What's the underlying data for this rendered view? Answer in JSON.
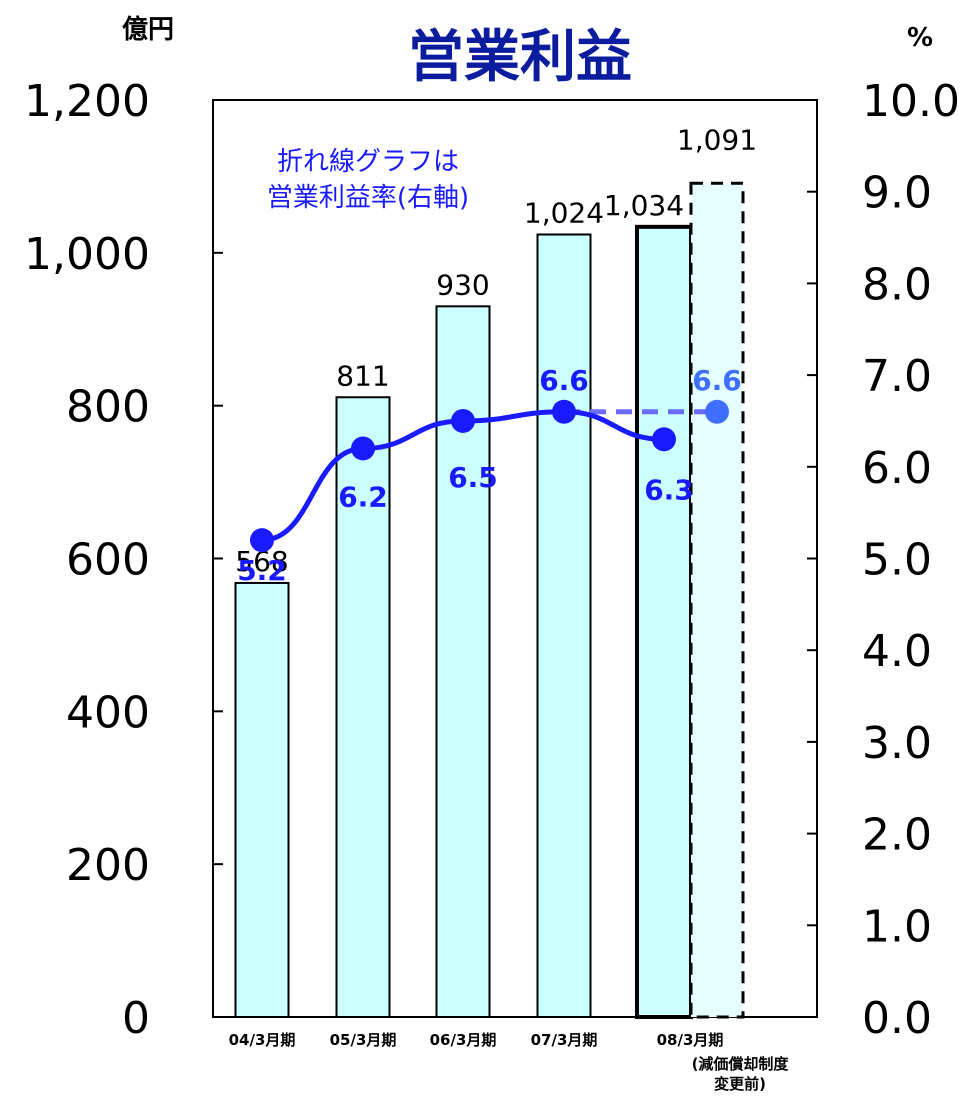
{
  "chart_data": {
    "type": "bar",
    "title": "営業利益",
    "left_unit": "億円",
    "right_unit": "%",
    "annotation": [
      "折れ線グラフは",
      "営業利益率(右軸)"
    ],
    "categories": [
      "04/3月期",
      "05/3月期",
      "06/3月期",
      "07/3月期",
      "08/3月期"
    ],
    "category_note": [
      "(減価償却制度",
      "変更前)"
    ],
    "left_axis": {
      "ylim": [
        0,
        1200
      ],
      "ticks": [
        0,
        200,
        400,
        600,
        800,
        1000,
        1200
      ],
      "tick_labels": [
        "0",
        "200",
        "400",
        "600",
        "800",
        "1,000",
        "1,200"
      ]
    },
    "right_axis": {
      "ylim": [
        0,
        10
      ],
      "ticks": [
        0,
        1,
        2,
        3,
        4,
        5,
        6,
        7,
        8,
        9,
        10
      ],
      "tick_labels": [
        "0.0",
        "1.0",
        "2.0",
        "3.0",
        "4.0",
        "5.0",
        "6.0",
        "7.0",
        "8.0",
        "9.0",
        "10.0"
      ]
    },
    "bars": [
      {
        "value": 568,
        "label": "568",
        "style": "normal"
      },
      {
        "value": 811,
        "label": "811",
        "style": "normal"
      },
      {
        "value": 930,
        "label": "930",
        "style": "normal"
      },
      {
        "value": 1024,
        "label": "1,024",
        "style": "normal"
      },
      {
        "value": 1034,
        "label": "1,034",
        "style": "bold"
      }
    ],
    "extra_bar": {
      "value": 1091,
      "label": "1,091",
      "style": "dashed"
    },
    "line": {
      "values": [
        5.2,
        6.2,
        6.5,
        6.6,
        6.3
      ],
      "labels": [
        "5.2",
        "6.2",
        "6.5",
        "6.6",
        "6.3"
      ]
    },
    "extra_point": {
      "value": 6.6,
      "label": "6.6"
    },
    "colors": {
      "bar_fill": "#ccffff",
      "extra_bar_fill": "#e6ffff",
      "line": "#1a1aff",
      "extra_line": "#6b6bff",
      "extra_point": "#3f6fff",
      "title": "#0b1d9e"
    }
  }
}
